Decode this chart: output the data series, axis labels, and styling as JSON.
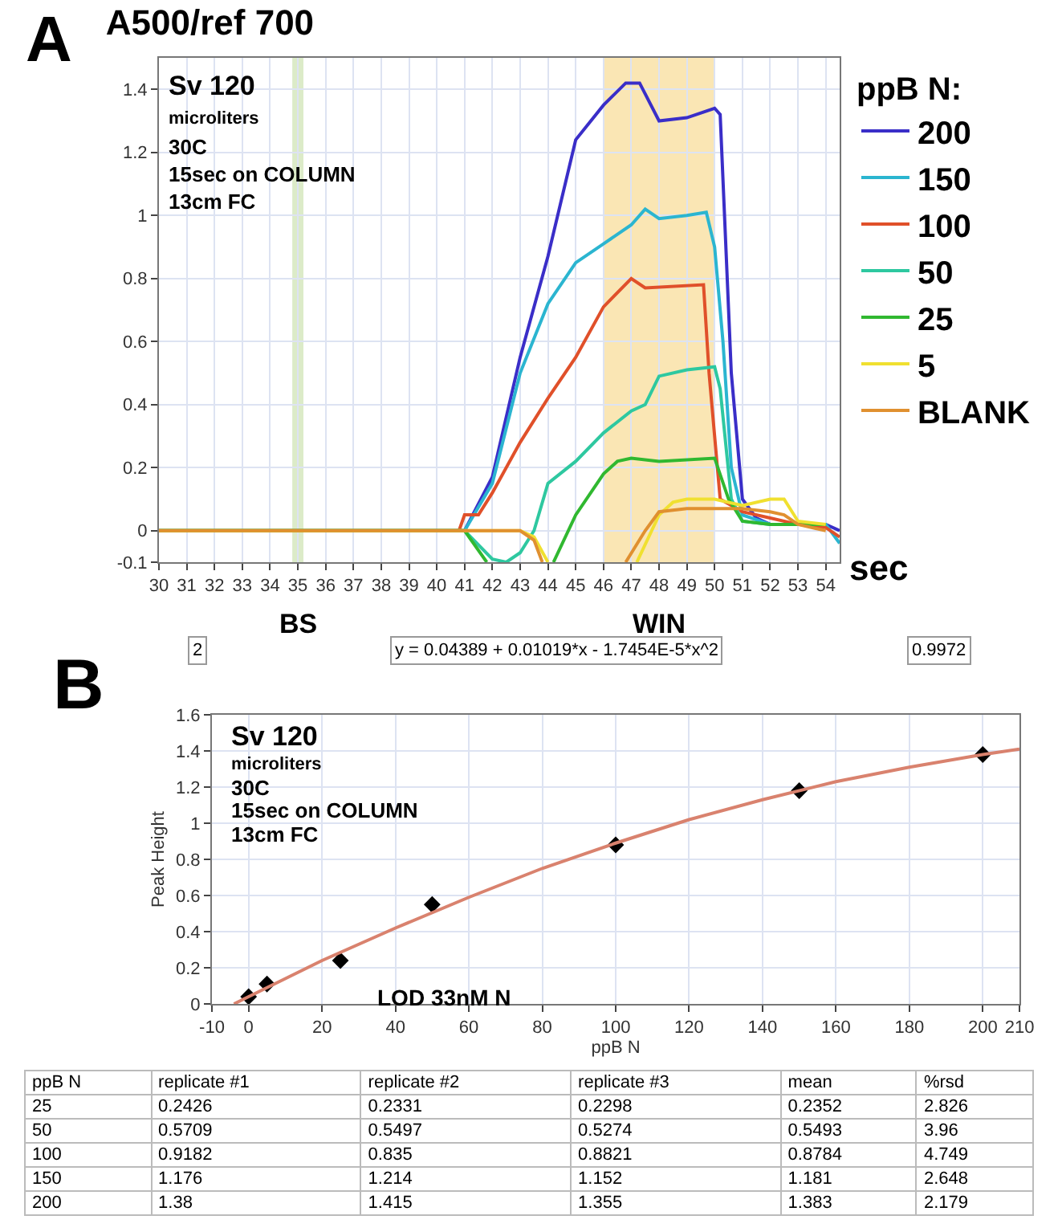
{
  "chart_data": [
    {
      "type": "line",
      "title": "A500/ref 700",
      "xlabel": "sec",
      "legend_title": "ppB N:",
      "legend": "right",
      "grid": true,
      "annotations": [
        "A",
        "Sv 120",
        "microliters",
        "30C",
        "15sec on COLUMN",
        "13cm FC"
      ],
      "xlim": [
        30,
        54.5
      ],
      "xticks": [
        30,
        31,
        32,
        33,
        34,
        35,
        36,
        37,
        38,
        39,
        40,
        41,
        42,
        43,
        44,
        45,
        46,
        47,
        48,
        49,
        50,
        51,
        52,
        53,
        54
      ],
      "ylim": [
        -0.1,
        1.5
      ],
      "yticks": [
        -0.1,
        0,
        0.2,
        0.4,
        0.6,
        0.8,
        1,
        1.2,
        1.4
      ],
      "bands": [
        {
          "axis": "x",
          "from": 34.8,
          "to": 35.2,
          "label": "BS",
          "color": "#dcebc8"
        },
        {
          "axis": "x",
          "from": 46,
          "to": 50,
          "label": "WIN",
          "color": "#fae6b4"
        }
      ],
      "series": [
        {
          "name": "200",
          "color": "#3a2ec8",
          "x": [
            30,
            41,
            42,
            43,
            44,
            45,
            46,
            46.8,
            47.3,
            48,
            49,
            50,
            50.2,
            50.6,
            51,
            51.5,
            52,
            54,
            54.5
          ],
          "values": [
            0,
            0,
            0.17,
            0.55,
            0.87,
            1.24,
            1.35,
            1.42,
            1.42,
            1.3,
            1.31,
            1.34,
            1.32,
            0.5,
            0.1,
            0.04,
            0.02,
            0.02,
            0
          ]
        },
        {
          "name": "150",
          "color": "#2bb5d0",
          "x": [
            30,
            41,
            42,
            43,
            44,
            45,
            46,
            47,
            47.5,
            48,
            49,
            49.7,
            50,
            50.3,
            50.6,
            51,
            52,
            54,
            54.5
          ],
          "values": [
            0,
            0,
            0.15,
            0.5,
            0.72,
            0.85,
            0.91,
            0.97,
            1.02,
            0.99,
            1,
            1.01,
            0.9,
            0.6,
            0.2,
            0.05,
            0.02,
            0.02,
            -0.04
          ]
        },
        {
          "name": "100",
          "color": "#e0502a",
          "x": [
            30,
            40.8,
            41,
            41.5,
            42,
            43,
            44,
            45,
            46,
            47,
            47.5,
            49.6,
            49.8,
            50.2,
            51,
            52,
            53,
            54,
            54.5
          ],
          "values": [
            0,
            0,
            0.05,
            0.05,
            0.12,
            0.28,
            0.42,
            0.55,
            0.71,
            0.8,
            0.77,
            0.78,
            0.5,
            0.1,
            0.06,
            0.04,
            0.02,
            0.01,
            -0.02
          ]
        },
        {
          "name": "50",
          "color": "#2ec8a0",
          "x": [
            30,
            41,
            42,
            42.5,
            43,
            43.5,
            44,
            45,
            46,
            47,
            47.5,
            48,
            49,
            50,
            50.2,
            50.6,
            51,
            52,
            54
          ],
          "values": [
            0,
            0,
            -0.09,
            -0.1,
            -0.07,
            0,
            0.15,
            0.22,
            0.31,
            0.38,
            0.4,
            0.49,
            0.51,
            0.52,
            0.45,
            0.1,
            0.03,
            0.02,
            0.02
          ]
        },
        {
          "name": "25",
          "color": "#30b830",
          "x": [
            30,
            41,
            41.8,
            43,
            44.2,
            45,
            46,
            46.5,
            47,
            48,
            50,
            50.5,
            51,
            52,
            54
          ],
          "values": [
            0,
            0,
            -0.1,
            null,
            -0.1,
            0.05,
            0.18,
            0.22,
            0.23,
            0.22,
            0.23,
            0.1,
            0.03,
            0.02,
            0.02
          ]
        },
        {
          "name": "5",
          "color": "#f0e030",
          "x": [
            30,
            41,
            43,
            43.5,
            44,
            46,
            47.2,
            48,
            48.5,
            49,
            50,
            51,
            52,
            52.5,
            53,
            54
          ],
          "values": [
            0,
            0,
            0,
            -0.02,
            -0.1,
            null,
            -0.1,
            0.05,
            0.09,
            0.1,
            0.1,
            0.08,
            0.1,
            0.1,
            0.03,
            0.02
          ]
        },
        {
          "name": "BLANK",
          "color": "#e09030",
          "x": [
            30,
            43,
            43.5,
            43.8,
            45,
            46.8,
            47.5,
            48,
            49,
            50,
            51,
            52,
            52.5,
            53,
            54
          ],
          "values": [
            0,
            0,
            -0.03,
            -0.1,
            null,
            -0.1,
            0,
            0.06,
            0.07,
            0.07,
            0.07,
            0.06,
            0.05,
            0.02,
            0
          ]
        }
      ]
    },
    {
      "type": "scatter",
      "xlabel": "ppB N",
      "ylabel": "Peak Height",
      "grid": true,
      "annotations": [
        "B",
        "Sv 120",
        "microliters",
        "30C",
        "15sec on COLUMN",
        "13cm FC",
        "LOD 33nM N",
        "2",
        "y = 0.04389 + 0.01019*x - 1.7454E-5*x^2",
        "0.9972"
      ],
      "xlim": [
        -10,
        210
      ],
      "xticks": [
        -10,
        0,
        20,
        40,
        60,
        80,
        100,
        120,
        140,
        160,
        180,
        200,
        210
      ],
      "ylim": [
        0,
        1.6
      ],
      "yticks": [
        0,
        0.2,
        0.4,
        0.6,
        0.8,
        1,
        1.2,
        1.4,
        1.6
      ],
      "series": [
        {
          "color": "#000000",
          "marker": "diamond",
          "x": [
            0,
            5,
            25,
            50,
            100,
            150,
            200
          ],
          "values": [
            0.04,
            0.11,
            0.24,
            0.55,
            0.88,
            1.18,
            1.38
          ]
        },
        {
          "type": "line",
          "color": "#d9826e",
          "x": [
            -4,
            0,
            20,
            40,
            60,
            80,
            100,
            120,
            140,
            160,
            180,
            200,
            210
          ],
          "values": [
            0,
            0.04,
            0.24,
            0.42,
            0.59,
            0.75,
            0.89,
            1.02,
            1.13,
            1.23,
            1.31,
            1.38,
            1.41
          ]
        }
      ]
    },
    {
      "type": "other",
      "categories": [
        "ppB N",
        "replicate #1",
        "replicate #2",
        "replicate #3",
        "mean",
        "%rsd"
      ],
      "cell_labels": [
        [
          "25",
          "0.2426",
          "0.2331",
          "0.2298",
          "0.2352",
          "2.826"
        ],
        [
          "50",
          "0.5709",
          "0.5497",
          "0.5274",
          "0.5493",
          "3.96"
        ],
        [
          "100",
          "0.9182",
          "0.835",
          "0.8821",
          "0.8784",
          "4.749"
        ],
        [
          "150",
          "1.176",
          "1.214",
          "1.152",
          "1.181",
          "2.648"
        ],
        [
          "200",
          "1.38",
          "1.415",
          "1.355",
          "1.383",
          "2.179"
        ]
      ]
    }
  ]
}
